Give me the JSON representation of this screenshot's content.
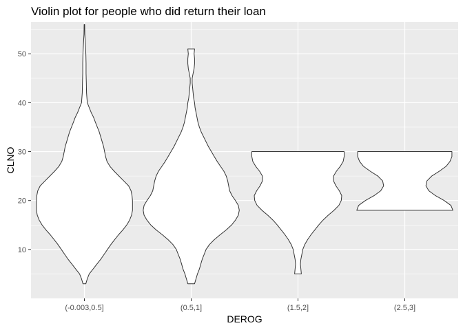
{
  "chart_data": {
    "type": "violin",
    "title": "Violin plot for people who did return their loan",
    "xlabel": "DEROG",
    "ylabel": "CLNO",
    "categories": [
      "(-0.003,0.5]",
      "(0.5,1]",
      "(1.5,2]",
      "(2.5,3]"
    ],
    "ylim": [
      0,
      56.5
    ],
    "yticks": [
      10,
      20,
      30,
      40,
      50
    ],
    "grid": true,
    "background": "#ebebeb",
    "grid_color": "#ffffff",
    "violin_fill": "#ffffff",
    "violin_stroke": "#333333",
    "series": [
      {
        "category": "(-0.003,0.5]",
        "profile": [
          [
            3,
            0.03
          ],
          [
            4,
            0.06
          ],
          [
            5,
            0.1
          ],
          [
            6,
            0.18
          ],
          [
            7,
            0.26
          ],
          [
            8,
            0.34
          ],
          [
            9,
            0.41
          ],
          [
            10,
            0.48
          ],
          [
            11,
            0.55
          ],
          [
            12,
            0.63
          ],
          [
            13,
            0.71
          ],
          [
            14,
            0.8
          ],
          [
            15,
            0.88
          ],
          [
            16,
            0.94
          ],
          [
            17,
            0.98
          ],
          [
            18,
            1.0
          ],
          [
            19,
            1.0
          ],
          [
            20,
            1.0
          ],
          [
            21,
            0.99
          ],
          [
            22,
            0.97
          ],
          [
            23,
            0.92
          ],
          [
            24,
            0.82
          ],
          [
            25,
            0.72
          ],
          [
            26,
            0.62
          ],
          [
            27,
            0.53
          ],
          [
            28,
            0.47
          ],
          [
            29,
            0.44
          ],
          [
            30,
            0.42
          ],
          [
            31,
            0.4
          ],
          [
            32,
            0.37
          ],
          [
            33,
            0.34
          ],
          [
            34,
            0.31
          ],
          [
            35,
            0.27
          ],
          [
            36,
            0.23
          ],
          [
            37,
            0.19
          ],
          [
            38,
            0.14
          ],
          [
            39,
            0.1
          ],
          [
            40,
            0.06
          ],
          [
            42,
            0.045
          ],
          [
            44,
            0.04
          ],
          [
            46,
            0.035
          ],
          [
            48,
            0.035
          ],
          [
            50,
            0.03
          ],
          [
            52,
            0.02
          ],
          [
            54,
            0.008
          ],
          [
            56,
            0.006
          ]
        ]
      },
      {
        "category": "(0.5,1]",
        "profile": [
          [
            3,
            0.07
          ],
          [
            4,
            0.1
          ],
          [
            5,
            0.13
          ],
          [
            6,
            0.17
          ],
          [
            7,
            0.2
          ],
          [
            8,
            0.23
          ],
          [
            9,
            0.27
          ],
          [
            10,
            0.31
          ],
          [
            11,
            0.38
          ],
          [
            12,
            0.48
          ],
          [
            13,
            0.6
          ],
          [
            14,
            0.73
          ],
          [
            15,
            0.84
          ],
          [
            16,
            0.92
          ],
          [
            17,
            0.98
          ],
          [
            18,
            1.0
          ],
          [
            19,
            0.98
          ],
          [
            20,
            0.92
          ],
          [
            21,
            0.85
          ],
          [
            22,
            0.8
          ],
          [
            23,
            0.78
          ],
          [
            24,
            0.76
          ],
          [
            25,
            0.73
          ],
          [
            26,
            0.68
          ],
          [
            27,
            0.61
          ],
          [
            28,
            0.54
          ],
          [
            29,
            0.48
          ],
          [
            30,
            0.42
          ],
          [
            31,
            0.36
          ],
          [
            32,
            0.31
          ],
          [
            33,
            0.26
          ],
          [
            34,
            0.21
          ],
          [
            35,
            0.17
          ],
          [
            36,
            0.14
          ],
          [
            37,
            0.12
          ],
          [
            38,
            0.1
          ],
          [
            39,
            0.08
          ],
          [
            40,
            0.07
          ],
          [
            41,
            0.05
          ],
          [
            42,
            0.04
          ],
          [
            43,
            0.03
          ],
          [
            44,
            0.02
          ],
          [
            45,
            0.02
          ],
          [
            46,
            0.04
          ],
          [
            47,
            0.06
          ],
          [
            48,
            0.07
          ],
          [
            49,
            0.07
          ],
          [
            50,
            0.06
          ],
          [
            51,
            0.07
          ]
        ]
      },
      {
        "category": "(1.5,2]",
        "profile": [
          [
            5,
            0.07
          ],
          [
            6,
            0.06
          ],
          [
            7,
            0.05
          ],
          [
            8,
            0.06
          ],
          [
            9,
            0.08
          ],
          [
            10,
            0.1
          ],
          [
            11,
            0.14
          ],
          [
            12,
            0.2
          ],
          [
            13,
            0.27
          ],
          [
            14,
            0.35
          ],
          [
            15,
            0.43
          ],
          [
            16,
            0.52
          ],
          [
            17,
            0.63
          ],
          [
            18,
            0.75
          ],
          [
            19,
            0.85
          ],
          [
            20,
            0.9
          ],
          [
            21,
            0.91
          ],
          [
            22,
            0.86
          ],
          [
            23,
            0.79
          ],
          [
            24,
            0.74
          ],
          [
            25,
            0.74
          ],
          [
            26,
            0.8
          ],
          [
            27,
            0.88
          ],
          [
            28,
            0.94
          ],
          [
            29,
            0.96
          ],
          [
            30,
            0.96
          ]
        ]
      },
      {
        "category": "(2.5,3]",
        "profile": [
          [
            18,
            1.0
          ],
          [
            19,
            0.96
          ],
          [
            20,
            0.82
          ],
          [
            21,
            0.64
          ],
          [
            22,
            0.5
          ],
          [
            23,
            0.44
          ],
          [
            24,
            0.46
          ],
          [
            25,
            0.56
          ],
          [
            26,
            0.72
          ],
          [
            27,
            0.86
          ],
          [
            28,
            0.94
          ],
          [
            29,
            0.98
          ],
          [
            30,
            0.98
          ]
        ]
      }
    ]
  }
}
